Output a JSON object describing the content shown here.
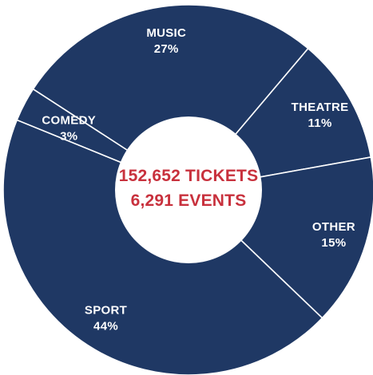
{
  "chart_data": {
    "type": "pie",
    "variant": "donut",
    "slices": [
      {
        "label": "MUSIC",
        "value": 27,
        "value_label": "27%"
      },
      {
        "label": "THEATRE",
        "value": 11,
        "value_label": "11%"
      },
      {
        "label": "OTHER",
        "value": 15,
        "value_label": "15%"
      },
      {
        "label": "SPORT",
        "value": 44,
        "value_label": "44%"
      },
      {
        "label": "COMEDY",
        "value": 3,
        "value_label": "3%"
      }
    ],
    "center": {
      "line1": "152,652 TICKETS",
      "line2": "6,291 EVENTS"
    },
    "colors": {
      "slice_fill": "#1f3864",
      "slice_border": "#ffffff",
      "slice_text": "#ffffff",
      "center_fill": "#ffffff",
      "center_text": "#c8313d"
    }
  }
}
